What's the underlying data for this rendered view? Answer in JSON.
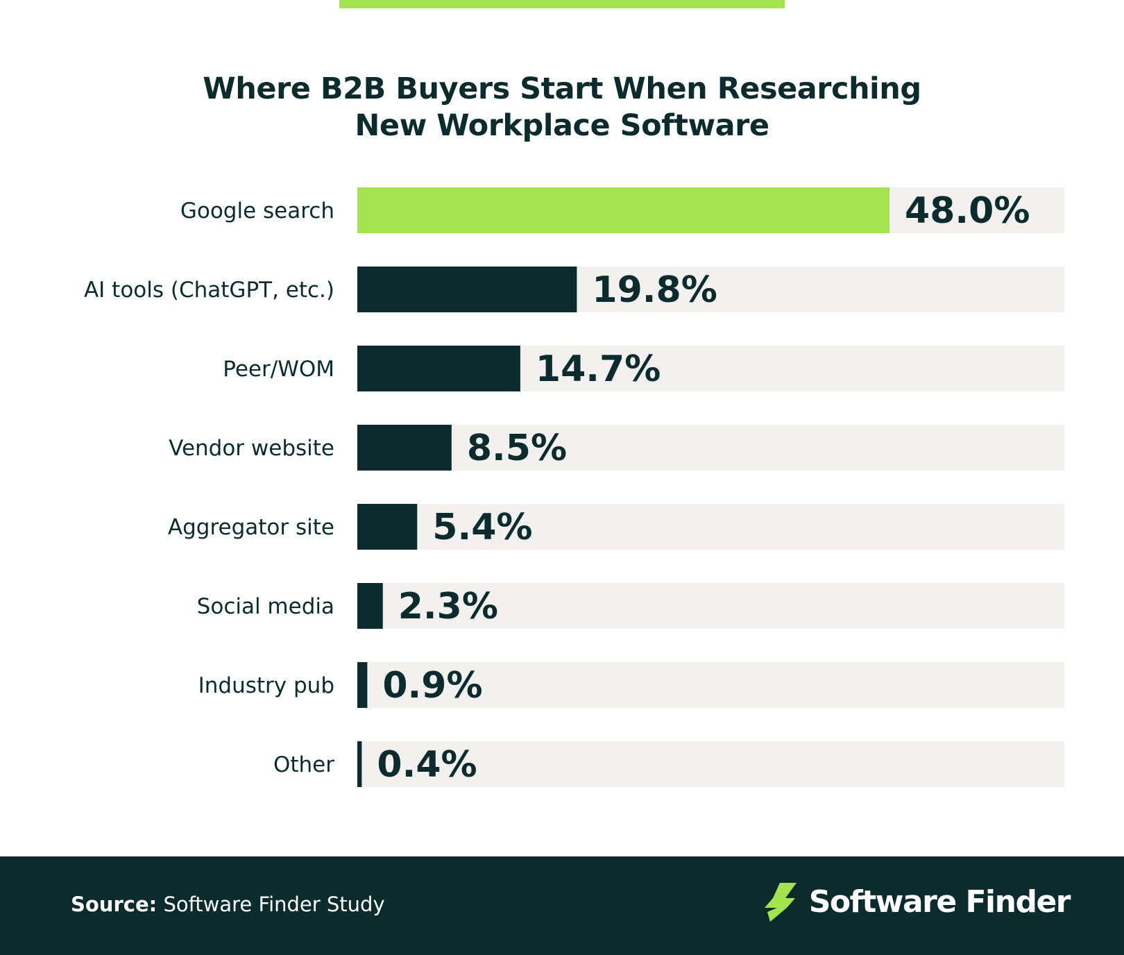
{
  "title_lines": [
    "Where B2B Buyers Start When Researching",
    "New Workplace Software"
  ],
  "colors": {
    "highlight": "#a2e34f",
    "bar": "#0b2b2d",
    "track": "#f2f1f0",
    "text": "#0b2b2d",
    "footer_bg": "#0b2b2d"
  },
  "chart_data": {
    "type": "bar",
    "orientation": "horizontal",
    "title": "Where B2B Buyers Start When Researching New Workplace Software",
    "categories": [
      "Google search",
      "AI tools (ChatGPT, etc.)",
      "Peer/WOM",
      "Vendor website",
      "Aggregator site",
      "Social media",
      "Industry pub",
      "Other"
    ],
    "values": [
      48.0,
      19.8,
      14.7,
      8.5,
      5.4,
      2.3,
      0.9,
      0.4
    ],
    "value_labels": [
      "48.0%",
      "19.8%",
      "14.7%",
      "8.5%",
      "5.4%",
      "2.3%",
      "0.9%",
      "0.4%"
    ],
    "highlight_index": 0,
    "xlim": [
      0,
      100
    ],
    "xlabel": "",
    "ylabel": "",
    "grid": false,
    "legend": "none"
  },
  "footer": {
    "source_label": "Source:",
    "source_text": "Software Finder Study",
    "brand_name": "Software Finder",
    "brand_icon": "bolt-logo-icon"
  }
}
